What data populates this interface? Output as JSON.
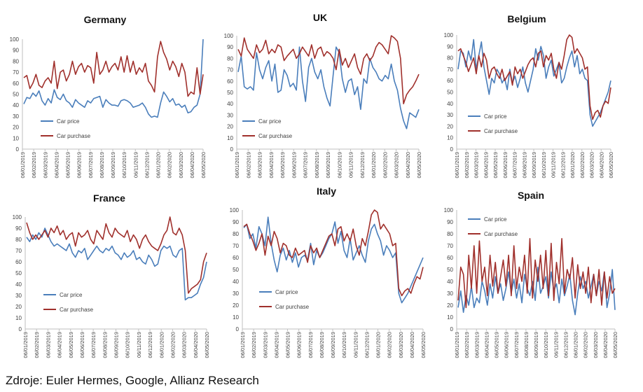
{
  "footer": {
    "source": "Zdroje: Euler Hermes, Google, Allianz Research"
  },
  "colors": {
    "car_price": "#4a7ebb",
    "car_purchase": "#a0302c",
    "axis": "#bfbfbf",
    "text": "#404040"
  },
  "chart_data": [
    {
      "type": "line",
      "title": "Germany",
      "ylim": [
        0,
        100
      ],
      "yticks": [
        0,
        10,
        20,
        30,
        40,
        50,
        60,
        70,
        80,
        90,
        100
      ],
      "xlabels": [
        "06/01/2019",
        "06/02/2019",
        "06/03/2019",
        "06/04/2019",
        "06/05/2019",
        "06/06/2019",
        "06/07/2019",
        "06/08/2019",
        "06/09/2019",
        "06/10/2019",
        "06/11/2019",
        "06/12/2019",
        "06/01/2020",
        "06/02/2020",
        "06/03/2020",
        "06/04/2020",
        "06/05/2020"
      ],
      "legend_position": "bottom-left",
      "series": [
        {
          "name": "Car price",
          "color": "#4a7ebb",
          "values": [
            41,
            47,
            46,
            51,
            48,
            53,
            44,
            40,
            46,
            42,
            54,
            47,
            45,
            50,
            44,
            42,
            38,
            45,
            42,
            40,
            38,
            44,
            42,
            46,
            47,
            48,
            38,
            45,
            42,
            40,
            40,
            39,
            44,
            45,
            44,
            42,
            38,
            39,
            40,
            42,
            38,
            32,
            29,
            30,
            29,
            42,
            52,
            48,
            43,
            46,
            40,
            41,
            38,
            40,
            33,
            34,
            38,
            40,
            50,
            100
          ]
        },
        {
          "name": "Car purchase",
          "color": "#a0302c",
          "values": [
            65,
            67,
            55,
            60,
            68,
            58,
            56,
            62,
            65,
            60,
            80,
            55,
            70,
            72,
            62,
            68,
            80,
            68,
            75,
            78,
            70,
            76,
            74,
            60,
            88,
            68,
            72,
            80,
            70,
            75,
            78,
            72,
            84,
            70,
            85,
            70,
            80,
            68,
            74,
            70,
            78,
            62,
            58,
            52,
            84,
            98,
            88,
            82,
            72,
            80,
            75,
            66,
            78,
            70,
            48,
            52,
            50,
            74,
            50,
            68
          ]
        }
      ]
    },
    {
      "type": "line",
      "title": "UK",
      "ylim": [
        0,
        100
      ],
      "yticks": [
        0,
        10,
        20,
        30,
        40,
        50,
        60,
        70,
        80,
        90,
        100
      ],
      "xlabels": [
        "06/01/2019",
        "06/02/2019",
        "06/03/2019",
        "06/04/2019",
        "06/05/2019",
        "06/06/2019",
        "06/07/2019",
        "06/08/2019",
        "06/09/2019",
        "06/10/2019",
        "06/11/2019",
        "06/12/2019",
        "06/01/2020",
        "06/02/2020",
        "06/03/2020",
        "06/04/2020",
        "06/05/2020"
      ],
      "legend_position": "middle-left",
      "series": [
        {
          "name": "Car price",
          "color": "#4a7ebb",
          "values": [
            68,
            82,
            55,
            53,
            55,
            52,
            85,
            70,
            62,
            72,
            78,
            60,
            75,
            50,
            52,
            70,
            65,
            55,
            58,
            52,
            90,
            60,
            42,
            72,
            80,
            68,
            62,
            70,
            55,
            45,
            38,
            65,
            90,
            85,
            62,
            50,
            60,
            62,
            48,
            55,
            35,
            62,
            58,
            80,
            72,
            68,
            62,
            60,
            65,
            62,
            75,
            60,
            52,
            36,
            25,
            18,
            32,
            30,
            28,
            35
          ]
        },
        {
          "name": "Car purchase",
          "color": "#a0302c",
          "values": [
            88,
            82,
            98,
            88,
            84,
            80,
            92,
            85,
            88,
            96,
            84,
            88,
            85,
            92,
            90,
            78,
            82,
            85,
            88,
            80,
            84,
            90,
            86,
            82,
            92,
            80,
            88,
            90,
            82,
            86,
            84,
            80,
            70,
            88,
            74,
            80,
            72,
            78,
            84,
            72,
            66,
            80,
            84,
            78,
            82,
            90,
            94,
            92,
            88,
            84,
            100,
            98,
            95,
            80,
            40,
            48,
            52,
            55,
            60,
            66
          ]
        }
      ]
    },
    {
      "type": "line",
      "title": "Belgium",
      "ylim": [
        0,
        100
      ],
      "yticks": [
        0,
        10,
        20,
        30,
        40,
        50,
        60,
        70,
        80,
        90,
        100
      ],
      "xlabels": [
        "06/01/2019",
        "06/02/2019",
        "06/03/2019",
        "06/04/2019",
        "06/05/2019",
        "06/06/2019",
        "06/07/2019",
        "06/08/2019",
        "06/09/2019",
        "06/10/2019",
        "06/11/2019",
        "06/12/2019",
        "06/01/2020",
        "06/02/2020",
        "06/03/2020",
        "06/04/2020",
        "06/05/2020"
      ],
      "legend_position": "bottom-left",
      "series": [
        {
          "name": "Car price",
          "color": "#4a7ebb",
          "values": [
            70,
            86,
            84,
            72,
            86,
            78,
            96,
            70,
            82,
            94,
            72,
            60,
            48,
            62,
            58,
            70,
            66,
            58,
            62,
            52,
            70,
            58,
            64,
            54,
            62,
            72,
            58,
            50,
            60,
            70,
            88,
            78,
            90,
            82,
            62,
            72,
            78,
            64,
            70,
            76,
            58,
            62,
            72,
            80,
            86,
            72,
            82,
            66,
            70,
            62,
            60,
            30,
            20,
            24,
            28,
            32,
            38,
            44,
            50,
            60
          ]
        },
        {
          "name": "Car purchase",
          "color": "#a0302c",
          "values": [
            86,
            88,
            82,
            76,
            68,
            74,
            80,
            66,
            82,
            72,
            84,
            78,
            62,
            70,
            72,
            66,
            62,
            70,
            60,
            64,
            68,
            56,
            72,
            66,
            70,
            62,
            68,
            74,
            78,
            80,
            72,
            84,
            86,
            72,
            82,
            78,
            84,
            70,
            62,
            76,
            70,
            82,
            96,
            100,
            98,
            84,
            88,
            84,
            80,
            70,
            72,
            38,
            26,
            32,
            34,
            28,
            38,
            42,
            40,
            54
          ]
        }
      ]
    },
    {
      "type": "line",
      "title": "France",
      "ylim": [
        0,
        100
      ],
      "yticks": [
        0,
        10,
        20,
        30,
        40,
        50,
        60,
        70,
        80,
        90,
        100
      ],
      "xlabels": [
        "06/01/2019",
        "06/02/2019",
        "06/03/2019",
        "06/04/2019",
        "06/05/2019",
        "06/06/2019",
        "06/07/2019",
        "06/08/2019",
        "06/09/2019",
        "06/10/2019",
        "06/11/2019",
        "06/12/2019",
        "06/01/2020",
        "06/02/2020",
        "06/03/2020",
        "06/04/2020",
        "06/05/2020"
      ],
      "legend_position": "bottom-left",
      "series": [
        {
          "name": "Car price",
          "color": "#4a7ebb",
          "values": [
            82,
            78,
            84,
            80,
            86,
            82,
            90,
            84,
            78,
            74,
            76,
            74,
            72,
            70,
            76,
            68,
            64,
            70,
            68,
            72,
            62,
            66,
            70,
            74,
            70,
            68,
            72,
            70,
            74,
            68,
            66,
            62,
            68,
            64,
            66,
            70,
            62,
            64,
            60,
            58,
            66,
            62,
            56,
            58,
            70,
            74,
            72,
            74,
            66,
            64,
            70,
            72,
            26,
            28,
            28,
            30,
            32,
            40,
            46,
            60
          ]
        },
        {
          "name": "Car purchase",
          "color": "#a0302c",
          "values": [
            95,
            86,
            80,
            84,
            80,
            84,
            88,
            82,
            90,
            86,
            92,
            84,
            88,
            80,
            84,
            86,
            74,
            86,
            82,
            84,
            88,
            80,
            76,
            88,
            84,
            80,
            94,
            86,
            82,
            90,
            86,
            84,
            82,
            88,
            78,
            84,
            80,
            72,
            80,
            84,
            78,
            74,
            72,
            70,
            76,
            84,
            88,
            100,
            86,
            84,
            90,
            84,
            70,
            32,
            36,
            38,
            40,
            44,
            60,
            68
          ]
        }
      ]
    },
    {
      "type": "line",
      "title": "Italy",
      "ylim": [
        0,
        100
      ],
      "yticks": [
        0,
        10,
        20,
        30,
        40,
        50,
        60,
        70,
        80,
        90,
        100
      ],
      "xlabels": [
        "06/01/2019",
        "06/02/2019",
        "06/03/2019",
        "06/04/2019",
        "06/05/2019",
        "06/06/2019",
        "06/07/2019",
        "06/08/2019",
        "06/09/2019",
        "06/10/2019",
        "06/11/2019",
        "06/12/2019",
        "06/01/2020",
        "06/02/2020",
        "06/03/2020",
        "06/04/2020",
        "06/05/2020"
      ],
      "legend_position": "bottom-left",
      "series": [
        {
          "name": "Car price",
          "color": "#4a7ebb",
          "values": [
            85,
            88,
            76,
            80,
            68,
            86,
            80,
            70,
            94,
            72,
            58,
            48,
            62,
            68,
            58,
            66,
            56,
            64,
            52,
            60,
            62,
            58,
            72,
            54,
            66,
            60,
            64,
            70,
            76,
            80,
            90,
            72,
            82,
            66,
            60,
            76,
            58,
            64,
            70,
            62,
            56,
            74,
            84,
            88,
            80,
            74,
            62,
            70,
            66,
            60,
            64,
            30,
            22,
            26,
            30,
            36,
            42,
            48,
            54,
            60
          ]
        },
        {
          "name": "Car purchase",
          "color": "#a0302c",
          "values": [
            86,
            88,
            80,
            74,
            66,
            72,
            80,
            62,
            78,
            70,
            82,
            76,
            64,
            72,
            70,
            62,
            60,
            68,
            62,
            64,
            66,
            56,
            70,
            64,
            68,
            60,
            66,
            72,
            78,
            80,
            70,
            84,
            86,
            74,
            80,
            74,
            84,
            70,
            62,
            76,
            70,
            82,
            96,
            100,
            98,
            84,
            88,
            84,
            80,
            70,
            72,
            34,
            28,
            32,
            34,
            30,
            38,
            44,
            42,
            52
          ]
        }
      ]
    },
    {
      "type": "line",
      "title": "Spain",
      "ylim": [
        0,
        100
      ],
      "yticks": [
        0,
        10,
        20,
        30,
        40,
        50,
        60,
        70,
        80,
        90,
        100
      ],
      "xlabels": [
        "06/01/2019",
        "06/02/2019",
        "06/03/2019",
        "06/04/2019",
        "06/05/2019",
        "06/06/2019",
        "06/07/2019",
        "06/08/2019",
        "06/09/2019",
        "06/10/2019",
        "06/11/2019",
        "06/12/2019",
        "06/01/2020",
        "06/02/2020",
        "06/03/2020",
        "06/04/2020",
        "06/05/2020"
      ],
      "legend_position": "top-left",
      "series": [
        {
          "name": "Car price",
          "color": "#4a7ebb",
          "values": [
            18,
            32,
            14,
            28,
            20,
            36,
            18,
            26,
            22,
            40,
            32,
            20,
            38,
            26,
            44,
            30,
            38,
            24,
            34,
            48,
            30,
            42,
            26,
            38,
            22,
            46,
            34,
            28,
            40,
            24,
            52,
            30,
            36,
            44,
            26,
            48,
            32,
            38,
            22,
            42,
            28,
            36,
            46,
            24,
            12,
            30,
            44,
            34,
            40,
            26,
            36,
            46,
            28,
            40,
            32,
            48,
            18,
            30,
            50,
            16
          ]
        },
        {
          "name": "Car purchase",
          "color": "#a0302c",
          "values": [
            24,
            52,
            46,
            18,
            62,
            34,
            70,
            30,
            74,
            40,
            52,
            28,
            62,
            36,
            56,
            30,
            44,
            58,
            36,
            62,
            28,
            70,
            34,
            52,
            40,
            62,
            30,
            76,
            26,
            58,
            40,
            62,
            34,
            66,
            28,
            72,
            24,
            56,
            38,
            76,
            30,
            50,
            42,
            60,
            26,
            54,
            34,
            48,
            30,
            52,
            22,
            46,
            28,
            50,
            20,
            48,
            26,
            44,
            30,
            34
          ]
        }
      ]
    }
  ]
}
